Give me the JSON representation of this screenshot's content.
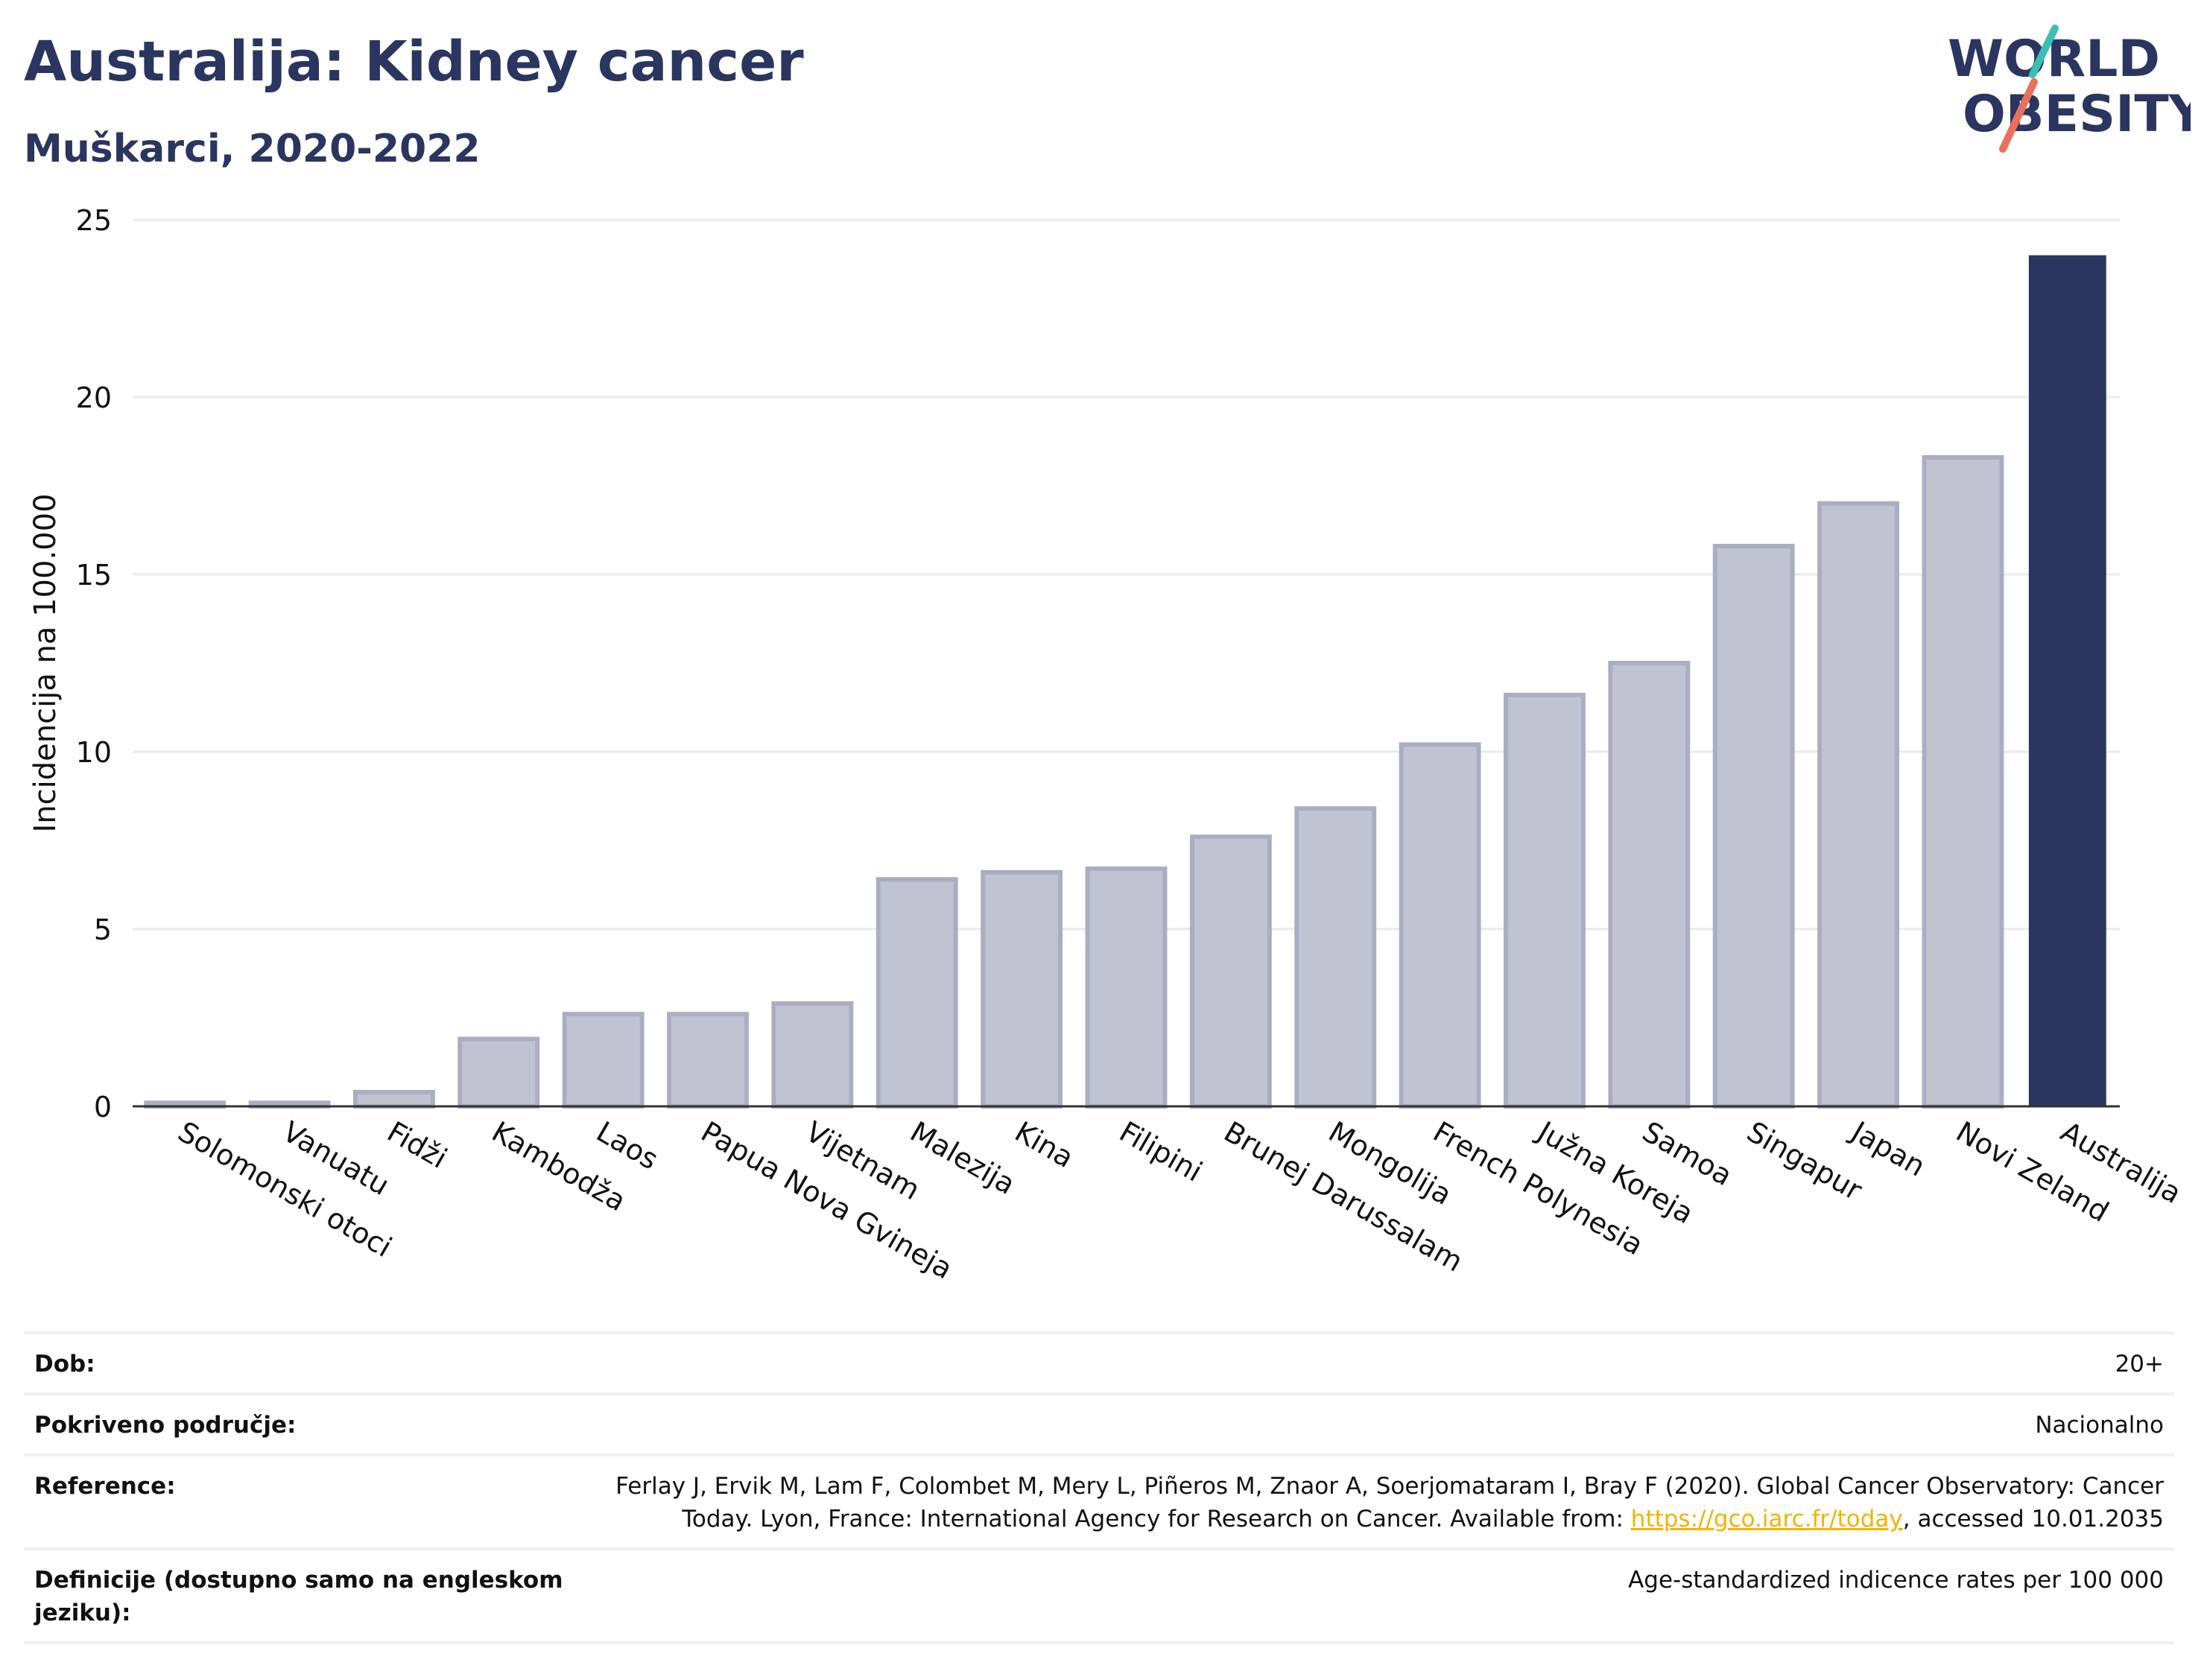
{
  "header": {
    "title": "Australija: Kidney cancer",
    "subtitle": "Muškarci, 2020-2022"
  },
  "logo": {
    "line1": "WORLD",
    "line2": "OBESITY",
    "colors": {
      "text": "#2a3560",
      "slash_teal": "#3bbfb5",
      "slash_coral": "#e8705f"
    }
  },
  "colors": {
    "bar_default": "#c0c4d2",
    "bar_default_stroke": "#a9aec2",
    "bar_highlight": "#2a3560",
    "grid": "#e8eaf0",
    "axis": "#333333",
    "link": "#f0b400"
  },
  "chart_data": {
    "type": "bar",
    "title": "Australija: Kidney cancer",
    "subtitle": "Muškarci, 2020-2022",
    "xlabel": "",
    "ylabel": "Incidencija na 100.000",
    "ylim": [
      0,
      25
    ],
    "yticks": [
      0,
      5,
      10,
      15,
      20,
      25
    ],
    "grid": true,
    "highlight": "Australija",
    "categories": [
      "Solomonski otoci",
      "Vanuatu",
      "Fidži",
      "Kambodža",
      "Laos",
      "Papua Nova Gvineja",
      "Vijetnam",
      "Malezija",
      "Kina",
      "Filipini",
      "Brunej Darussalam",
      "Mongolija",
      "French Polynesia",
      "Južna Koreja",
      "Samoa",
      "Singapur",
      "Japan",
      "Novi Zeland",
      "Australija"
    ],
    "values": [
      0.1,
      0.1,
      0.4,
      1.9,
      2.6,
      2.6,
      2.9,
      6.4,
      6.6,
      6.7,
      7.6,
      8.4,
      10.2,
      11.6,
      12.5,
      15.8,
      17.0,
      18.3,
      24.0
    ]
  },
  "info": {
    "rows": [
      {
        "label": "Dob:",
        "value": "20+"
      },
      {
        "label": "Pokriveno područje:",
        "value": "Nacionalno"
      },
      {
        "label": "Reference:",
        "value_before": "Ferlay J, Ervik M, Lam F, Colombet M, Mery L, Piñeros M, Znaor A, Soerjomataram I, Bray F (2020). Global Cancer Observatory: Cancer Today. Lyon, France: International Agency for Research on Cancer. Available from: ",
        "link": "https://gco.iarc.fr/today",
        "value_after": ", accessed 10.01.2035"
      },
      {
        "label": "Definicije (dostupno samo na engleskom jeziku):",
        "value": "Age-standardized indicence rates per 100 000"
      }
    ]
  }
}
